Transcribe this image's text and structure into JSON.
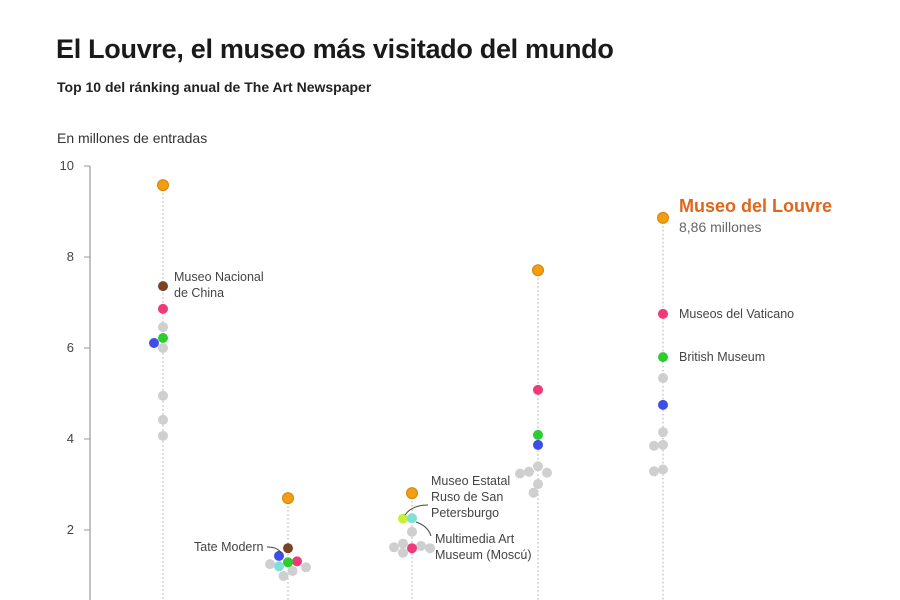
{
  "header": {
    "title": "El Louvre, el museo más visitado del mundo",
    "subtitle": "Top 10 del ránking anual de The Art Newspaper"
  },
  "chart_data": {
    "type": "scatter",
    "title": "El Louvre, el museo más visitado del mundo",
    "subtitle": "Top 10 del ránking anual de The Art Newspaper",
    "ylabel": "En millones de entradas",
    "ylim": [
      0,
      10
    ],
    "yticks": [
      "10",
      "8",
      "6",
      "4",
      "2"
    ],
    "grid": false,
    "colors": {
      "louvre": "#f29d12",
      "china": "#7a4321",
      "vaticano": "#f0397a",
      "british": "#2ecc2e",
      "tate": "#3f4de8",
      "ruso": "#7fe0d8",
      "multimedia": "#c4f03a",
      "other": "#cfcfcf",
      "highlight_text": "#e0661a"
    },
    "columns": [
      {
        "points": [
          {
            "m": "louvre",
            "v": 9.58
          },
          {
            "m": "china",
            "v": 7.36
          },
          {
            "m": "vaticano",
            "v": 6.86
          },
          {
            "m": "other",
            "v": 6.46
          },
          {
            "m": "british",
            "v": 6.22
          },
          {
            "m": "tate",
            "v": 6.11
          },
          {
            "m": "other",
            "v": 6.0
          },
          {
            "m": "other",
            "v": 4.95
          },
          {
            "m": "other",
            "v": 4.42
          },
          {
            "m": "other",
            "v": 4.07
          }
        ]
      },
      {
        "points": [
          {
            "m": "louvre",
            "v": 2.7
          },
          {
            "m": "china",
            "v": 1.6
          },
          {
            "m": "tate",
            "v": 1.43
          },
          {
            "m": "british",
            "v": 1.29
          },
          {
            "m": "vaticano",
            "v": 1.31
          },
          {
            "m": "other",
            "v": 1.25
          },
          {
            "m": "ruso",
            "v": 1.2
          },
          {
            "m": "other",
            "v": 1.18
          },
          {
            "m": "other",
            "v": 1.1
          },
          {
            "m": "other",
            "v": 0.99
          }
        ]
      },
      {
        "points": [
          {
            "m": "louvre",
            "v": 2.81
          },
          {
            "m": "ruso",
            "v": 2.26
          },
          {
            "m": "multimedia",
            "v": 2.25
          },
          {
            "m": "other",
            "v": 1.96
          },
          {
            "m": "other",
            "v": 1.7
          },
          {
            "m": "other",
            "v": 1.65
          },
          {
            "m": "other",
            "v": 1.62
          },
          {
            "m": "vaticano",
            "v": 1.6
          },
          {
            "m": "other",
            "v": 1.6
          },
          {
            "m": "other",
            "v": 1.5
          }
        ]
      },
      {
        "points": [
          {
            "m": "louvre",
            "v": 7.71
          },
          {
            "m": "vaticano",
            "v": 5.08
          },
          {
            "m": "british",
            "v": 4.09
          },
          {
            "m": "tate",
            "v": 3.87
          },
          {
            "m": "other",
            "v": 3.4
          },
          {
            "m": "other",
            "v": 3.28
          },
          {
            "m": "other",
            "v": 3.26
          },
          {
            "m": "other",
            "v": 3.24
          },
          {
            "m": "other",
            "v": 3.01
          },
          {
            "m": "other",
            "v": 2.82
          }
        ]
      },
      {
        "points": [
          {
            "m": "louvre",
            "v": 8.86
          },
          {
            "m": "vaticano",
            "v": 6.75
          },
          {
            "m": "british",
            "v": 5.8
          },
          {
            "m": "other",
            "v": 5.34
          },
          {
            "m": "tate",
            "v": 4.75
          },
          {
            "m": "other",
            "v": 4.15
          },
          {
            "m": "other",
            "v": 3.87
          },
          {
            "m": "other",
            "v": 3.85
          },
          {
            "m": "other",
            "v": 3.33
          },
          {
            "m": "other",
            "v": 3.29
          }
        ]
      }
    ],
    "annotations": {
      "china": [
        "Museo Nacional",
        "de China"
      ],
      "tate": "Tate Modern",
      "ruso": [
        "Museo Estatal",
        "Ruso de San",
        "Petersburgo"
      ],
      "multimedia": [
        "Multimedia Art",
        "Museum (Moscú)"
      ],
      "louvre": "Museo del Louvre",
      "louvre_value": "8,86 millones",
      "vaticano": "Museos del Vaticano",
      "british": "British Museum"
    }
  }
}
